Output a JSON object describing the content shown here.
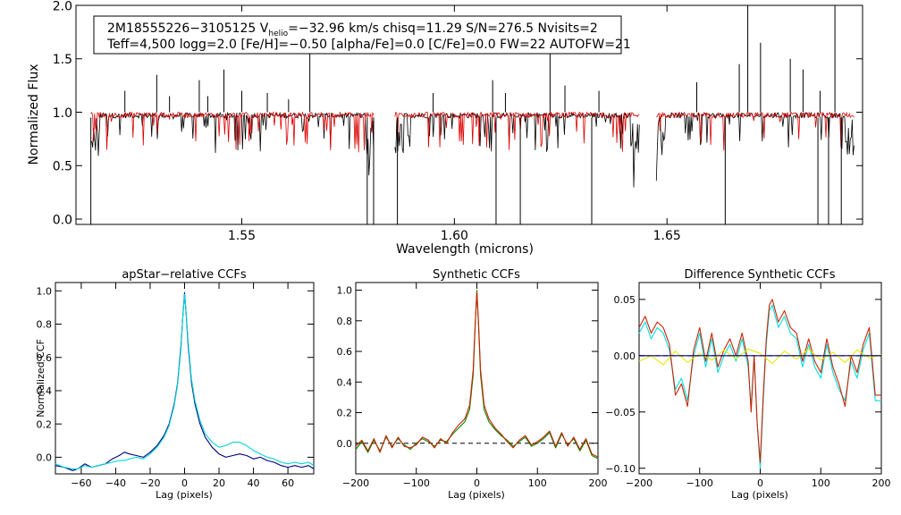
{
  "chart_data": [
    {
      "type": "line",
      "panel": "spectrum",
      "header_line1_prefix": "2M18555226−3105125  V",
      "header_sub": "helio",
      "header_line1_suffix": "=−32.96 km/s  chisq=11.29  S/N=276.5  Nvisits=2",
      "header_line2": "Teff=4,500 logg=2.0 [Fe/H]=−0.50 [alpha/Fe]=0.0 [C/Fe]=0.0 FW=22 AUTOFW=21",
      "xlabel": "Wavelength (microns)",
      "ylabel": "Normalized Flux",
      "xlim": [
        1.511,
        1.696
      ],
      "ylim": [
        -0.05,
        2.0
      ],
      "xticks": [
        1.55,
        1.6,
        1.65
      ],
      "xticklabels": [
        "1.55",
        "1.60",
        "1.65"
      ],
      "yticks": [
        0.0,
        0.5,
        1.0,
        1.5,
        2.0
      ],
      "yticklabels": [
        "0.0",
        "0.5",
        "1.0",
        "1.5",
        "2.0"
      ],
      "chips": [
        [
          1.5145,
          1.581
        ],
        [
          1.586,
          1.6435
        ],
        [
          1.6475,
          1.694
        ]
      ],
      "series": [
        {
          "name": "observed",
          "color": "#000000",
          "continuum": 0.97
        },
        {
          "name": "model",
          "color": "#dd0000",
          "continuum": 0.975
        }
      ],
      "deep_lines": [
        [
          1.5145,
          -0.05
        ],
        [
          1.5795,
          -0.05
        ],
        [
          1.581,
          -0.05
        ],
        [
          1.5866,
          -0.05
        ],
        [
          1.6098,
          -0.05
        ],
        [
          1.6155,
          -0.05
        ],
        [
          1.6323,
          -0.05
        ],
        [
          1.6637,
          -0.05
        ],
        [
          1.6855,
          -0.05
        ],
        [
          1.688,
          -0.05
        ],
        [
          1.691,
          -0.05
        ]
      ],
      "spikes": [
        [
          1.5225,
          1.2
        ],
        [
          1.53,
          1.35
        ],
        [
          1.533,
          1.15
        ],
        [
          1.54,
          1.3
        ],
        [
          1.542,
          1.15
        ],
        [
          1.5458,
          1.4
        ],
        [
          1.55,
          1.2
        ],
        [
          1.556,
          1.18
        ],
        [
          1.561,
          1.12
        ],
        [
          1.566,
          1.55
        ],
        [
          1.595,
          1.18
        ],
        [
          1.609,
          1.3
        ],
        [
          1.612,
          1.18
        ],
        [
          1.6225,
          1.55
        ],
        [
          1.626,
          1.25
        ],
        [
          1.634,
          1.2
        ],
        [
          1.657,
          1.28
        ],
        [
          1.667,
          1.45
        ],
        [
          1.669,
          2.0
        ],
        [
          1.672,
          1.65
        ],
        [
          1.679,
          1.5
        ],
        [
          1.682,
          1.4
        ],
        [
          1.686,
          1.2
        ],
        [
          1.6895,
          2.0
        ]
      ]
    },
    {
      "type": "line",
      "panel": "apstar_ccf",
      "title": "apStar−relative CCFs",
      "xlabel": "Lag (pixels)",
      "ylabel": "Normalized CCF",
      "xlim": [
        -75,
        75
      ],
      "ylim": [
        -0.1,
        1.05
      ],
      "xticks": [
        -60,
        -40,
        -20,
        0,
        20,
        40,
        60
      ],
      "xticklabels": [
        "−60",
        "−40",
        "−20",
        "0",
        "20",
        "40",
        "60"
      ],
      "yticks": [
        0.0,
        0.2,
        0.4,
        0.6,
        0.8,
        1.0
      ],
      "yticklabels": [
        "0.0",
        "0.2",
        "0.4",
        "0.6",
        "0.8",
        "1.0"
      ],
      "series": [
        {
          "name": "ccf_a",
          "color": "#000080",
          "x": [
            -75,
            -70,
            -65,
            -62,
            -58,
            -54,
            -50,
            -46,
            -42,
            -38,
            -35,
            -32,
            -28,
            -24,
            -20,
            -16,
            -12,
            -9,
            -6,
            -4,
            -2,
            -1,
            0,
            1,
            2,
            4,
            6,
            9,
            12,
            16,
            20,
            24,
            28,
            32,
            36,
            40,
            44,
            48,
            52,
            56,
            60,
            64,
            68,
            72,
            75
          ],
          "y": [
            -0.05,
            -0.06,
            -0.08,
            -0.07,
            -0.04,
            -0.06,
            -0.05,
            -0.04,
            -0.01,
            0.01,
            0.03,
            0.02,
            0.01,
            0.0,
            0.03,
            0.07,
            0.13,
            0.2,
            0.32,
            0.45,
            0.68,
            0.85,
            0.99,
            0.85,
            0.68,
            0.45,
            0.32,
            0.2,
            0.12,
            0.06,
            0.02,
            0.0,
            0.01,
            0.02,
            0.01,
            -0.01,
            0.0,
            -0.02,
            -0.03,
            -0.05,
            -0.06,
            -0.05,
            -0.06,
            -0.05,
            -0.07
          ]
        },
        {
          "name": "ccf_b",
          "color": "#00d8d8",
          "x": [
            -75,
            -70,
            -65,
            -62,
            -58,
            -54,
            -50,
            -46,
            -42,
            -38,
            -35,
            -32,
            -28,
            -24,
            -20,
            -16,
            -12,
            -9,
            -6,
            -4,
            -2,
            -1,
            0,
            1,
            2,
            4,
            6,
            9,
            12,
            16,
            20,
            24,
            28,
            32,
            36,
            40,
            44,
            48,
            52,
            56,
            60,
            64,
            68,
            72,
            75
          ],
          "y": [
            -0.04,
            -0.06,
            -0.07,
            -0.07,
            -0.05,
            -0.06,
            -0.05,
            -0.04,
            -0.03,
            -0.02,
            -0.02,
            -0.01,
            0.0,
            -0.01,
            0.02,
            0.06,
            0.12,
            0.19,
            0.31,
            0.44,
            0.66,
            0.85,
            0.98,
            0.86,
            0.7,
            0.47,
            0.34,
            0.22,
            0.14,
            0.09,
            0.06,
            0.07,
            0.09,
            0.09,
            0.07,
            0.04,
            0.02,
            0.0,
            -0.01,
            -0.03,
            -0.04,
            -0.03,
            -0.04,
            -0.03,
            -0.05
          ]
        }
      ]
    },
    {
      "type": "line",
      "panel": "synthetic_ccf",
      "title": "Synthetic CCFs",
      "xlabel": "Lag (pixels)",
      "xlim": [
        -200,
        200
      ],
      "ylim": [
        -0.2,
        1.05
      ],
      "xticks": [
        -200,
        -100,
        0,
        100,
        200
      ],
      "xticklabels": [
        "−200",
        "−100",
        "0",
        "100",
        "200"
      ],
      "yticks": [
        0.0,
        0.2,
        0.4,
        0.6,
        0.8,
        1.0
      ],
      "yticklabels": [
        "0.0",
        "0.2",
        "0.4",
        "0.6",
        "0.8",
        "1.0"
      ],
      "zero_line": true,
      "series": [
        {
          "name": "ccf_green",
          "color": "#008800",
          "x": [
            -200,
            -190,
            -180,
            -170,
            -160,
            -150,
            -140,
            -130,
            -120,
            -110,
            -100,
            -90,
            -80,
            -70,
            -60,
            -50,
            -40,
            -30,
            -20,
            -12,
            -6,
            -3,
            0,
            3,
            6,
            12,
            20,
            30,
            40,
            50,
            60,
            70,
            80,
            90,
            100,
            110,
            120,
            130,
            140,
            150,
            160,
            170,
            180,
            190,
            200
          ],
          "y": [
            -0.04,
            0.01,
            -0.06,
            0.02,
            -0.05,
            0.04,
            -0.02,
            0.03,
            -0.01,
            -0.04,
            0.0,
            0.03,
            0.01,
            -0.02,
            0.02,
            0.01,
            0.06,
            0.1,
            0.14,
            0.22,
            0.45,
            0.75,
            1.0,
            0.75,
            0.45,
            0.22,
            0.14,
            0.09,
            0.05,
            0.02,
            -0.02,
            0.01,
            0.04,
            -0.02,
            0.0,
            0.03,
            0.07,
            -0.03,
            0.06,
            -0.01,
            0.03,
            -0.05,
            0.02,
            -0.08,
            -0.1
          ]
        },
        {
          "name": "ccf_red",
          "color": "#cc2200",
          "x": [
            -200,
            -190,
            -180,
            -170,
            -160,
            -150,
            -140,
            -130,
            -120,
            -110,
            -100,
            -90,
            -80,
            -70,
            -60,
            -50,
            -40,
            -30,
            -20,
            -12,
            -6,
            -3,
            0,
            3,
            6,
            12,
            20,
            30,
            40,
            50,
            60,
            70,
            80,
            90,
            100,
            110,
            120,
            130,
            140,
            150,
            160,
            170,
            180,
            190,
            200
          ],
          "y": [
            -0.02,
            0.02,
            -0.05,
            0.03,
            -0.06,
            0.05,
            -0.03,
            0.04,
            -0.02,
            -0.03,
            -0.01,
            0.04,
            0.02,
            -0.03,
            0.03,
            0.0,
            0.07,
            0.12,
            0.16,
            0.25,
            0.48,
            0.77,
            0.99,
            0.77,
            0.48,
            0.25,
            0.16,
            0.1,
            0.06,
            0.01,
            -0.03,
            0.02,
            0.05,
            -0.01,
            0.01,
            0.04,
            0.08,
            -0.02,
            0.07,
            -0.02,
            0.04,
            -0.04,
            0.03,
            -0.07,
            -0.09
          ]
        }
      ]
    },
    {
      "type": "line",
      "panel": "difference_ccf",
      "title": "Difference Synthetic CCFs",
      "xlabel": "Lag (pixels)",
      "xlim": [
        -200,
        200
      ],
      "ylim": [
        -0.105,
        0.065
      ],
      "xticks": [
        -200,
        -100,
        0,
        100,
        200
      ],
      "xticklabels": [
        "−200",
        "−100",
        "0",
        "100",
        "200"
      ],
      "yticks": [
        0.05,
        0.0,
        -0.05,
        -0.1
      ],
      "yticklabels": [
        "0.05",
        "0.00",
        "−0.05",
        "−0.10"
      ],
      "zero_line": true,
      "series": [
        {
          "name": "diff_cyan",
          "color": "#00e0e0",
          "x": [
            -200,
            -190,
            -180,
            -170,
            -160,
            -150,
            -140,
            -130,
            -120,
            -110,
            -100,
            -90,
            -80,
            -70,
            -60,
            -50,
            -40,
            -30,
            -20,
            -15,
            -10,
            -5,
            0,
            5,
            10,
            15,
            20,
            30,
            40,
            50,
            60,
            70,
            80,
            90,
            100,
            110,
            120,
            130,
            140,
            150,
            160,
            170,
            180,
            190,
            200
          ],
          "y": [
            0.02,
            0.03,
            0.015,
            0.025,
            0.02,
            0.005,
            -0.03,
            -0.02,
            -0.04,
            0.0,
            0.02,
            -0.01,
            0.015,
            -0.015,
            0.0,
            0.01,
            -0.005,
            0.015,
            -0.01,
            -0.045,
            0.0,
            -0.06,
            -0.1,
            -0.04,
            0.01,
            0.04,
            0.045,
            0.025,
            0.035,
            0.02,
            0.015,
            -0.01,
            0.01,
            -0.01,
            -0.02,
            0.01,
            -0.015,
            -0.03,
            -0.04,
            -0.005,
            -0.02,
            0.005,
            0.02,
            -0.04,
            -0.04
          ]
        },
        {
          "name": "diff_red",
          "color": "#cc2200",
          "x": [
            -200,
            -190,
            -180,
            -170,
            -160,
            -150,
            -140,
            -130,
            -120,
            -110,
            -100,
            -90,
            -80,
            -70,
            -60,
            -50,
            -40,
            -30,
            -20,
            -15,
            -10,
            -5,
            0,
            5,
            10,
            15,
            20,
            30,
            40,
            50,
            60,
            70,
            80,
            90,
            100,
            110,
            120,
            130,
            140,
            150,
            160,
            170,
            180,
            190,
            200
          ],
          "y": [
            0.025,
            0.035,
            0.02,
            0.03,
            0.025,
            0.01,
            -0.035,
            -0.025,
            -0.045,
            0.005,
            0.025,
            -0.005,
            0.02,
            -0.01,
            0.005,
            0.015,
            0.0,
            0.02,
            -0.005,
            -0.05,
            0.0,
            -0.06,
            -0.095,
            -0.035,
            0.015,
            0.045,
            0.05,
            0.03,
            0.04,
            0.025,
            0.02,
            -0.005,
            0.015,
            -0.005,
            -0.015,
            0.015,
            -0.01,
            -0.025,
            -0.045,
            0.0,
            -0.015,
            0.01,
            0.025,
            -0.035,
            -0.035
          ]
        },
        {
          "name": "diff_yellow",
          "color": "#e8e800",
          "x": [
            -200,
            -180,
            -160,
            -140,
            -120,
            -100,
            -80,
            -60,
            -40,
            -20,
            0,
            20,
            40,
            60,
            80,
            100,
            120,
            140,
            160,
            180,
            200
          ],
          "y": [
            -0.005,
            0.0,
            -0.008,
            0.004,
            -0.006,
            0.002,
            -0.004,
            0.005,
            -0.003,
            0.006,
            0.002,
            -0.007,
            0.004,
            -0.003,
            0.006,
            -0.004,
            0.003,
            -0.006,
            0.005,
            -0.002,
            0.001
          ]
        },
        {
          "name": "diff_navy",
          "color": "#000080",
          "x": [
            -200,
            200
          ],
          "y": [
            0.0,
            0.0
          ]
        }
      ]
    }
  ]
}
